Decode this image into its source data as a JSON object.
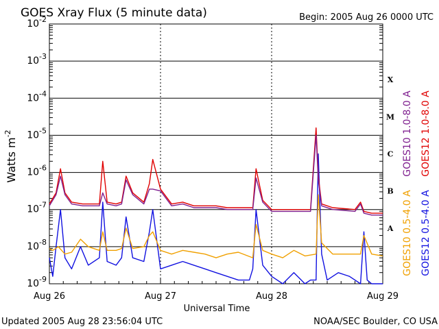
{
  "chart_data": {
    "type": "line",
    "title": "GOES Xray Flux (5 minute data)",
    "begin_label": "Begin:  2005 Aug 26 0000 UTC",
    "ylabel": "Watts m",
    "ylabel_exponent": "-2",
    "xlabel": "Universal Time",
    "x_unit": "days since 2005 Aug 26 0000 UTC",
    "xlim": [
      0,
      3
    ],
    "ylim_log10": [
      -9,
      -2
    ],
    "x_ticks": [
      {
        "x": 0,
        "label": "Aug 26"
      },
      {
        "x": 1,
        "label": "Aug 27"
      },
      {
        "x": 2,
        "label": "Aug 28"
      },
      {
        "x": 3,
        "label": "Aug 29"
      }
    ],
    "y_ticks": [
      {
        "exp": -2,
        "base": "10",
        "sup": "-2"
      },
      {
        "exp": -3,
        "base": "10",
        "sup": "-3"
      },
      {
        "exp": -4,
        "base": "10",
        "sup": "-4"
      },
      {
        "exp": -5,
        "base": "10",
        "sup": "-5"
      },
      {
        "exp": -6,
        "base": "10",
        "sup": "-6"
      },
      {
        "exp": -7,
        "base": "10",
        "sup": "-7"
      },
      {
        "exp": -8,
        "base": "10",
        "sup": "-8"
      },
      {
        "exp": -9,
        "base": "10",
        "sup": "-9"
      }
    ],
    "flare_classes": [
      {
        "label": "X",
        "center_log10": -3.5
      },
      {
        "label": "M",
        "center_log10": -4.5
      },
      {
        "label": "C",
        "center_log10": -5.5
      },
      {
        "label": "B",
        "center_log10": -6.5
      },
      {
        "label": "A",
        "center_log10": -7.5
      }
    ],
    "series": [
      {
        "name": "GOES10 1.0-8.0 A",
        "color": "#7f1f8f",
        "x": [
          0,
          0.06,
          0.1,
          0.14,
          0.2,
          0.3,
          0.45,
          0.48,
          0.52,
          0.6,
          0.65,
          0.69,
          0.75,
          0.85,
          0.9,
          0.93,
          1,
          1.1,
          1.2,
          1.3,
          1.5,
          1.6,
          1.7,
          1.83,
          1.86,
          1.92,
          2,
          2.2,
          2.35,
          2.4,
          2.42,
          2.45,
          2.55,
          2.75,
          2.8,
          2.83,
          2.9,
          3
        ],
        "log10": [
          -6.9,
          -6.6,
          -6.1,
          -6.6,
          -6.85,
          -6.9,
          -6.9,
          -6.55,
          -6.85,
          -6.9,
          -6.85,
          -6.2,
          -6.6,
          -6.85,
          -6.45,
          -6.45,
          -6.5,
          -6.9,
          -6.85,
          -6.95,
          -6.95,
          -7.0,
          -7.0,
          -7.0,
          -6.15,
          -6.8,
          -7.05,
          -7.05,
          -7.05,
          -5.0,
          -6.2,
          -6.9,
          -7.0,
          -7.05,
          -6.85,
          -7.1,
          -7.15,
          -7.15
        ]
      },
      {
        "name": "GOES12 1.0-8.0 A",
        "color": "#e00000",
        "x": [
          0,
          0.06,
          0.1,
          0.14,
          0.2,
          0.3,
          0.45,
          0.48,
          0.52,
          0.6,
          0.65,
          0.69,
          0.75,
          0.85,
          0.9,
          0.93,
          1,
          1.1,
          1.2,
          1.3,
          1.5,
          1.6,
          1.7,
          1.83,
          1.86,
          1.92,
          2,
          2.2,
          2.35,
          2.4,
          2.42,
          2.45,
          2.55,
          2.75,
          2.8,
          2.83,
          2.9,
          3
        ],
        "log10": [
          -6.85,
          -6.55,
          -5.9,
          -6.55,
          -6.8,
          -6.85,
          -6.85,
          -5.7,
          -6.8,
          -6.85,
          -6.8,
          -6.1,
          -6.55,
          -6.8,
          -6.3,
          -5.65,
          -6.45,
          -6.85,
          -6.8,
          -6.9,
          -6.9,
          -6.95,
          -6.95,
          -6.95,
          -5.9,
          -6.75,
          -7.0,
          -7.0,
          -7.0,
          -4.8,
          -6.1,
          -6.85,
          -6.95,
          -7.0,
          -6.8,
          -7.05,
          -7.1,
          -7.1
        ]
      },
      {
        "name": "GOES10 0.5-4.0 A",
        "color": "#f0a000",
        "x": [
          0,
          0.03,
          0.08,
          0.14,
          0.2,
          0.28,
          0.35,
          0.45,
          0.48,
          0.52,
          0.6,
          0.65,
          0.69,
          0.75,
          0.85,
          0.9,
          0.93,
          1,
          1.1,
          1.2,
          1.3,
          1.4,
          1.5,
          1.6,
          1.7,
          1.83,
          1.86,
          1.92,
          2,
          2.1,
          2.2,
          2.3,
          2.4,
          2.42,
          2.45,
          2.55,
          2.7,
          2.8,
          2.83,
          2.9,
          3
        ],
        "log10": [
          -8.05,
          -8.1,
          -8.0,
          -8.2,
          -8.15,
          -7.8,
          -8.0,
          -8.1,
          -7.6,
          -8.1,
          -8.1,
          -8.05,
          -7.5,
          -8.05,
          -8.0,
          -7.7,
          -7.6,
          -8.1,
          -8.2,
          -8.1,
          -8.15,
          -8.2,
          -8.3,
          -8.2,
          -8.15,
          -8.3,
          -7.4,
          -8.1,
          -8.2,
          -8.3,
          -8.1,
          -8.25,
          -8.2,
          -6.6,
          -7.9,
          -8.2,
          -8.2,
          -8.2,
          -7.7,
          -8.2,
          -8.25
        ]
      },
      {
        "name": "GOES12 0.5-4.0 A",
        "color": "#1010e0",
        "x": [
          0,
          0.03,
          0.06,
          0.1,
          0.14,
          0.2,
          0.28,
          0.35,
          0.45,
          0.48,
          0.52,
          0.6,
          0.65,
          0.69,
          0.75,
          0.85,
          0.9,
          0.93,
          1,
          1.1,
          1.2,
          1.3,
          1.4,
          1.5,
          1.6,
          1.7,
          1.8,
          1.83,
          1.86,
          1.92,
          2,
          2.1,
          2.2,
          2.3,
          2.35,
          2.4,
          2.42,
          2.45,
          2.5,
          2.6,
          2.7,
          2.8,
          2.83,
          2.86,
          2.9,
          3
        ],
        "log10": [
          -8.3,
          -8.8,
          -8.0,
          -7.0,
          -8.3,
          -8.6,
          -8.0,
          -8.5,
          -8.3,
          -6.8,
          -8.4,
          -8.5,
          -8.3,
          -7.2,
          -8.3,
          -8.4,
          -7.6,
          -7.0,
          -8.6,
          -8.5,
          -8.4,
          -8.5,
          -8.6,
          -8.7,
          -8.8,
          -8.9,
          -8.9,
          -8.6,
          -7.0,
          -8.5,
          -8.8,
          -9.0,
          -8.7,
          -9.0,
          -8.9,
          -8.9,
          -5.5,
          -8.2,
          -8.9,
          -8.7,
          -8.8,
          -9.0,
          -7.6,
          -8.9,
          -9.0,
          -9.0
        ]
      }
    ]
  },
  "footer": {
    "updated": "Updated 2005 Aug 28 23:56:04 UTC",
    "credit": "NOAA/SEC Boulder, CO USA"
  }
}
